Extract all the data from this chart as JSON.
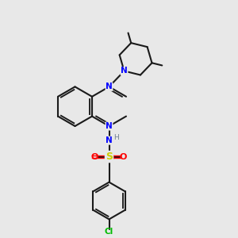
{
  "background_color": "#e8e8e8",
  "bond_color": "#1a1a1a",
  "n_color": "#0000ff",
  "s_color": "#cccc00",
  "o_color": "#ff0000",
  "cl_color": "#00bb00",
  "h_color": "#708090",
  "figsize": [
    3.0,
    3.0
  ],
  "dpi": 100,
  "xlim": [
    0,
    10
  ],
  "ylim": [
    0,
    10
  ]
}
